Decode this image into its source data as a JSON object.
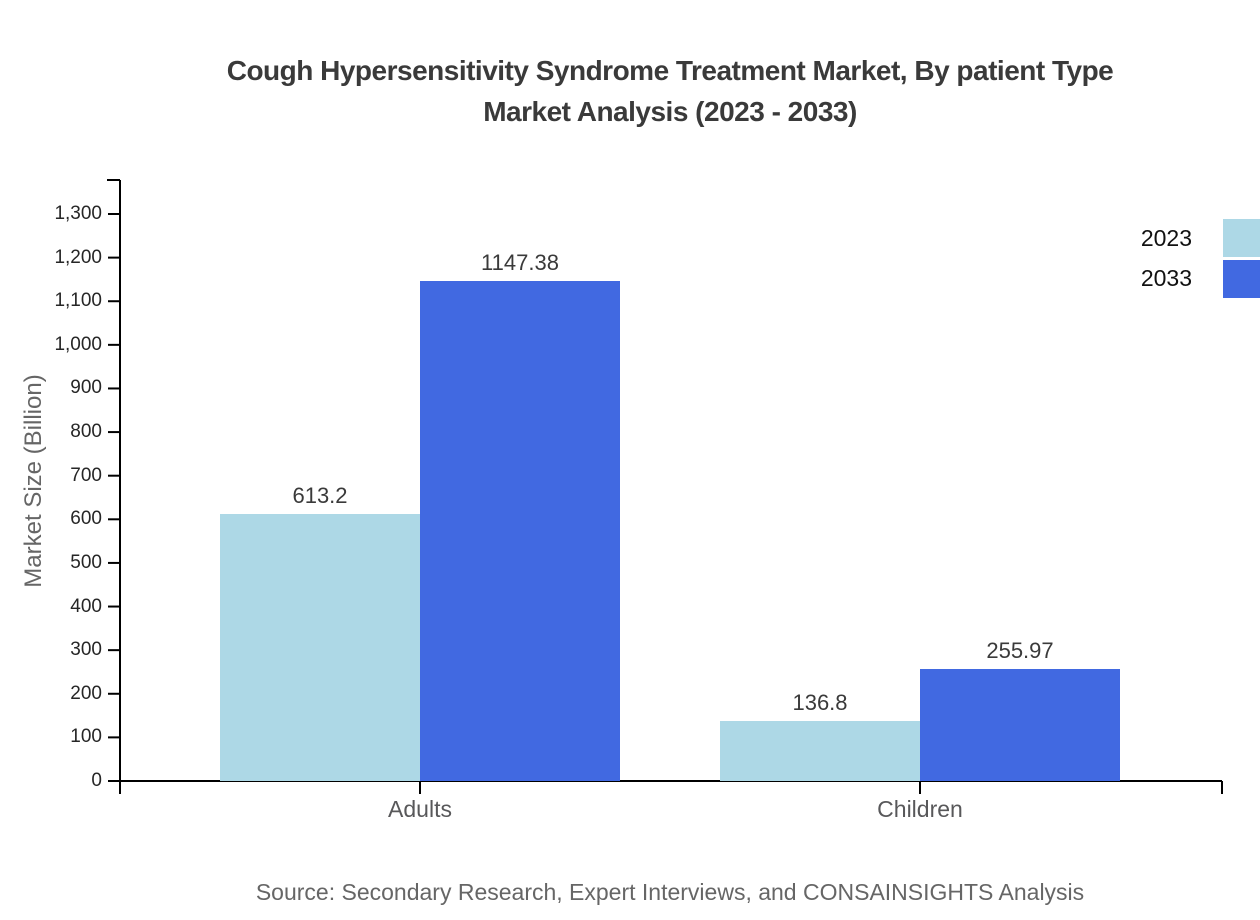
{
  "page": {
    "title_lines": [
      "Cough Hypersensitivity Syndrome Treatment Market, By patient Type",
      "Market Analysis (2023 - 2033)"
    ]
  },
  "chart_data": {
    "type": "bar",
    "title": "Cough Hypersensitivity Syndrome Treatment Market, By patient Type Market Analysis (2023 - 2033)",
    "categories": [
      "Adults",
      "Children"
    ],
    "series": [
      {
        "name": "2023",
        "color": "#ADD8E6",
        "values": [
          613.2,
          136.8
        ]
      },
      {
        "name": "2033",
        "color": "#4169E1",
        "values": [
          1147.38,
          255.97
        ]
      }
    ],
    "value_labels": [
      "613.2",
      "1147.38",
      "136.8",
      "255.97"
    ],
    "xlabel": "",
    "ylabel": "Market Size (Billion)",
    "ylim": [
      0,
      1378
    ],
    "yticks": [
      0,
      100,
      200,
      300,
      400,
      500,
      600,
      700,
      800,
      900,
      1000,
      1100,
      1200,
      1300
    ],
    "grid": false,
    "legend_position": "top-right",
    "source": "Source: Secondary Research, Expert Interviews, and CONSAINSIGHTS Analysis",
    "axis_color": "#000000",
    "title_color": "#3a3a3a",
    "label_color": "#58585a"
  }
}
